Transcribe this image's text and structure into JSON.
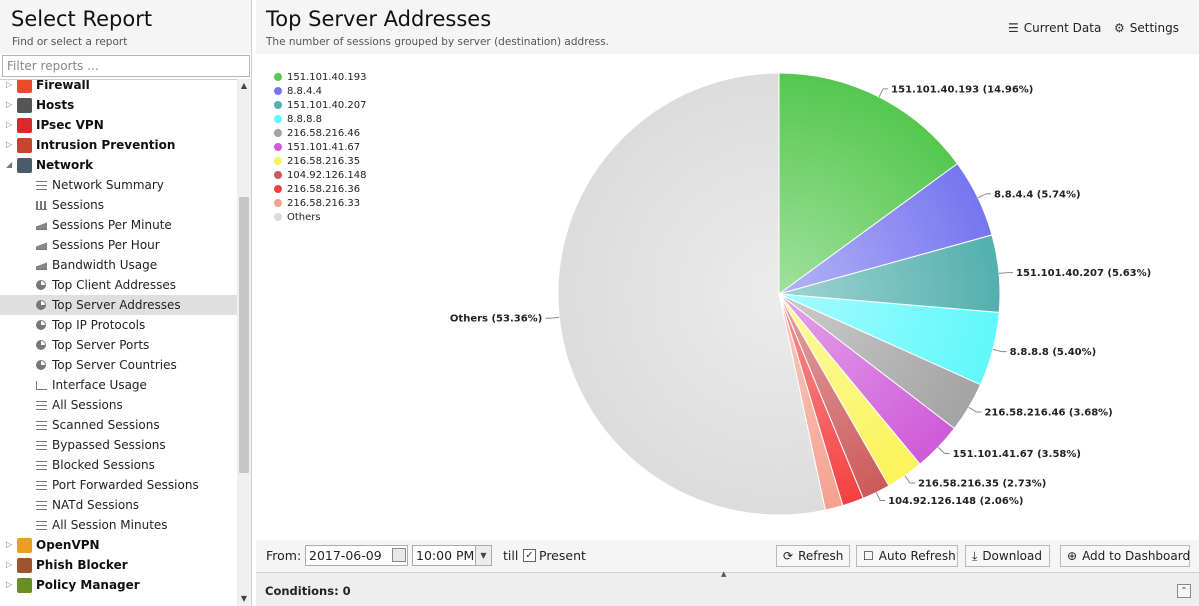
{
  "left": {
    "title": "Select Report",
    "subtitle": "Find or select a report",
    "filter_placeholder": "Filter reports ...",
    "categories": [
      {
        "label": "Firewall",
        "color": "#e94e2a",
        "icon": "firewall-icon"
      },
      {
        "label": "Hosts",
        "color": "#555555",
        "icon": "hosts-icon"
      },
      {
        "label": "IPsec VPN",
        "color": "#d62b2b",
        "icon": "lock-icon"
      },
      {
        "label": "Intrusion Prevention",
        "color": "#c9432f",
        "icon": "intrusion-icon"
      },
      {
        "label": "Network",
        "color": "#4a5a6a",
        "icon": "network-icon"
      },
      {
        "label": "OpenVPN",
        "color": "#e8a020",
        "icon": "openvpn-icon"
      },
      {
        "label": "Phish Blocker",
        "color": "#a0522d",
        "icon": "phish-icon"
      },
      {
        "label": "Policy Manager",
        "color": "#6b8e23",
        "icon": "policy-icon"
      }
    ],
    "network_reports": [
      {
        "label": "Network Summary",
        "icon": "list"
      },
      {
        "label": "Sessions",
        "icon": "bar"
      },
      {
        "label": "Sessions Per Minute",
        "icon": "area"
      },
      {
        "label": "Sessions Per Hour",
        "icon": "area"
      },
      {
        "label": "Bandwidth Usage",
        "icon": "area"
      },
      {
        "label": "Top Client Addresses",
        "icon": "pie"
      },
      {
        "label": "Top Server Addresses",
        "icon": "pie"
      },
      {
        "label": "Top IP Protocols",
        "icon": "pie"
      },
      {
        "label": "Top Server Ports",
        "icon": "pie"
      },
      {
        "label": "Top Server Countries",
        "icon": "pie"
      },
      {
        "label": "Interface Usage",
        "icon": "line"
      },
      {
        "label": "All Sessions",
        "icon": "list"
      },
      {
        "label": "Scanned Sessions",
        "icon": "list"
      },
      {
        "label": "Bypassed Sessions",
        "icon": "list"
      },
      {
        "label": "Blocked Sessions",
        "icon": "list"
      },
      {
        "label": "Port Forwarded Sessions",
        "icon": "list"
      },
      {
        "label": "NATd Sessions",
        "icon": "list"
      },
      {
        "label": "All Session Minutes",
        "icon": "list"
      }
    ],
    "selected_report": "Top Server Addresses"
  },
  "header": {
    "title": "Top Server Addresses",
    "subtitle": "The number of sessions grouped by server (destination) address.",
    "current_data_label": "Current Data",
    "settings_label": "Settings"
  },
  "chart_data": {
    "type": "pie",
    "legend_position": "top-left",
    "slices": [
      {
        "label": "151.101.40.193",
        "value": 14.96,
        "color": "#55c84f"
      },
      {
        "label": "8.8.4.4",
        "value": 5.74,
        "color": "#7676f0"
      },
      {
        "label": "151.101.40.207",
        "value": 5.63,
        "color": "#52b0ae"
      },
      {
        "label": "8.8.8.8",
        "value": 5.4,
        "color": "#5ff8fc"
      },
      {
        "label": "216.58.216.46",
        "value": 3.68,
        "color": "#a3a3a3"
      },
      {
        "label": "151.101.41.67",
        "value": 3.58,
        "color": "#cf5ad8"
      },
      {
        "label": "216.58.216.35",
        "value": 2.73,
        "color": "#fbf459"
      },
      {
        "label": "104.92.126.148",
        "value": 2.06,
        "color": "#cc5a5a"
      },
      {
        "label": "216.58.216.36",
        "value": 1.56,
        "color": "#f44040"
      },
      {
        "label": "216.58.216.33",
        "value": 1.3,
        "color": "#f6a090"
      },
      {
        "label": "Others",
        "value": 53.36,
        "color": "#dcdcdc"
      }
    ],
    "data_labels": [
      "151.101.40.193 (14.96%)",
      "8.8.4.4 (5.74%)",
      "151.101.40.207 (5.63%)",
      "8.8.8.8 (5.40%)",
      "216.58.216.46 (3.68%)",
      "151.101.41.67 (3.58%)",
      "216.58.216.35 (2.73%)",
      "104.92.126.148 (2.06%)",
      "",
      "",
      "Others (53.36%)"
    ]
  },
  "toolbar": {
    "from_label": "From:",
    "date_value": "2017-06-09",
    "time_value": "10:00 PM",
    "till_label": "till",
    "present_label": "Present",
    "present_checked": true,
    "refresh_label": "Refresh",
    "auto_refresh_label": "Auto Refresh",
    "download_label": "Download",
    "add_dashboard_label": "Add to Dashboard"
  },
  "conditions": {
    "label": "Conditions: 0"
  }
}
